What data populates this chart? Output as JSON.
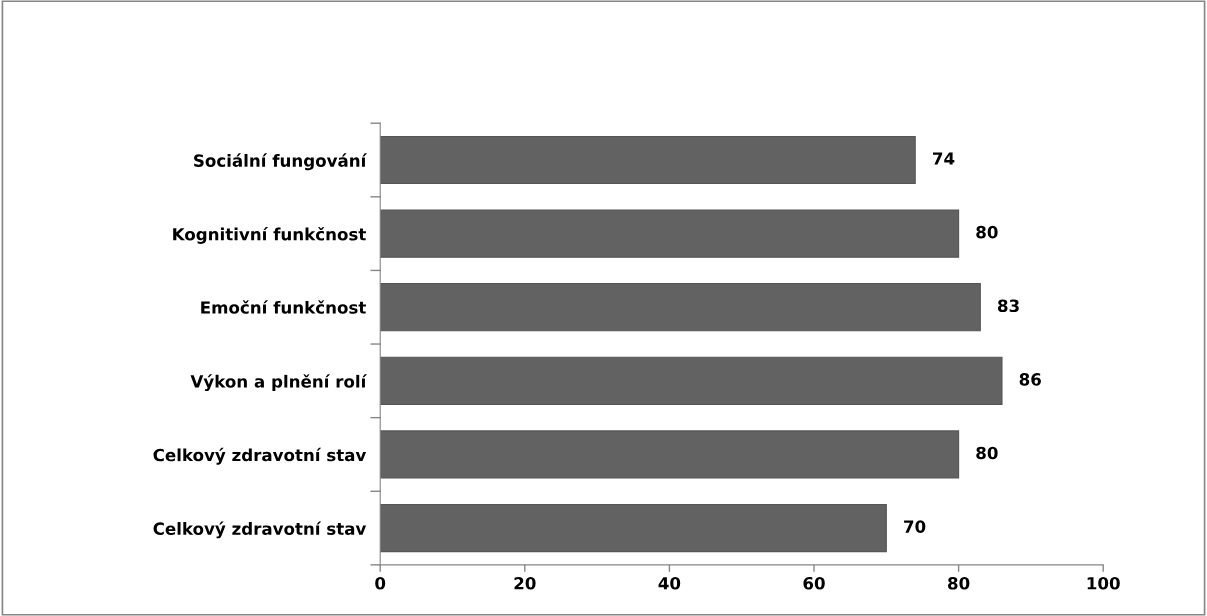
{
  "chart_data": {
    "type": "bar",
    "orientation": "horizontal",
    "categories": [
      "Sociální fungování",
      "Kognitivní funkčnost",
      "Emoční funkčnost",
      "Výkon a plnění rolí",
      "Celkový zdravotní stav",
      "Celkový zdravotní stav"
    ],
    "values": [
      74,
      80,
      83,
      86,
      80,
      70
    ],
    "color": "#626262",
    "xlim": [
      0,
      100
    ],
    "xticks": [
      0,
      20,
      40,
      60,
      80,
      100
    ],
    "grid": false,
    "legend": false,
    "data_labels": true
  }
}
